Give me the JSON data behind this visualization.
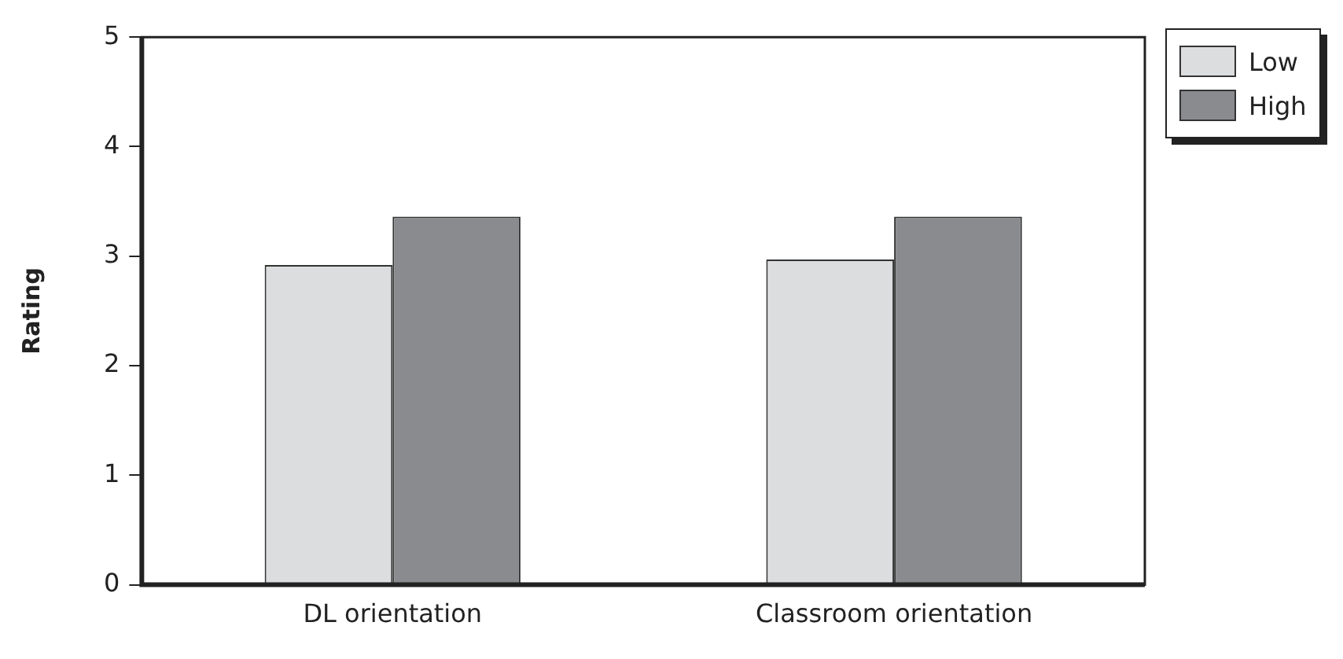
{
  "chart_data": {
    "type": "bar",
    "ylabel": "Rating",
    "categories": [
      "DL orientation",
      "Classroom orientation"
    ],
    "series": [
      {
        "name": "Low",
        "color": "#dcdddf",
        "values": [
          2.92,
          2.97
        ]
      },
      {
        "name": "High",
        "color": "#8a8b8f",
        "values": [
          3.36,
          3.36
        ]
      }
    ],
    "ylim": [
      0,
      5
    ],
    "yticks": [
      0,
      1,
      2,
      3,
      4,
      5
    ],
    "grid": false,
    "legend": "top right"
  }
}
